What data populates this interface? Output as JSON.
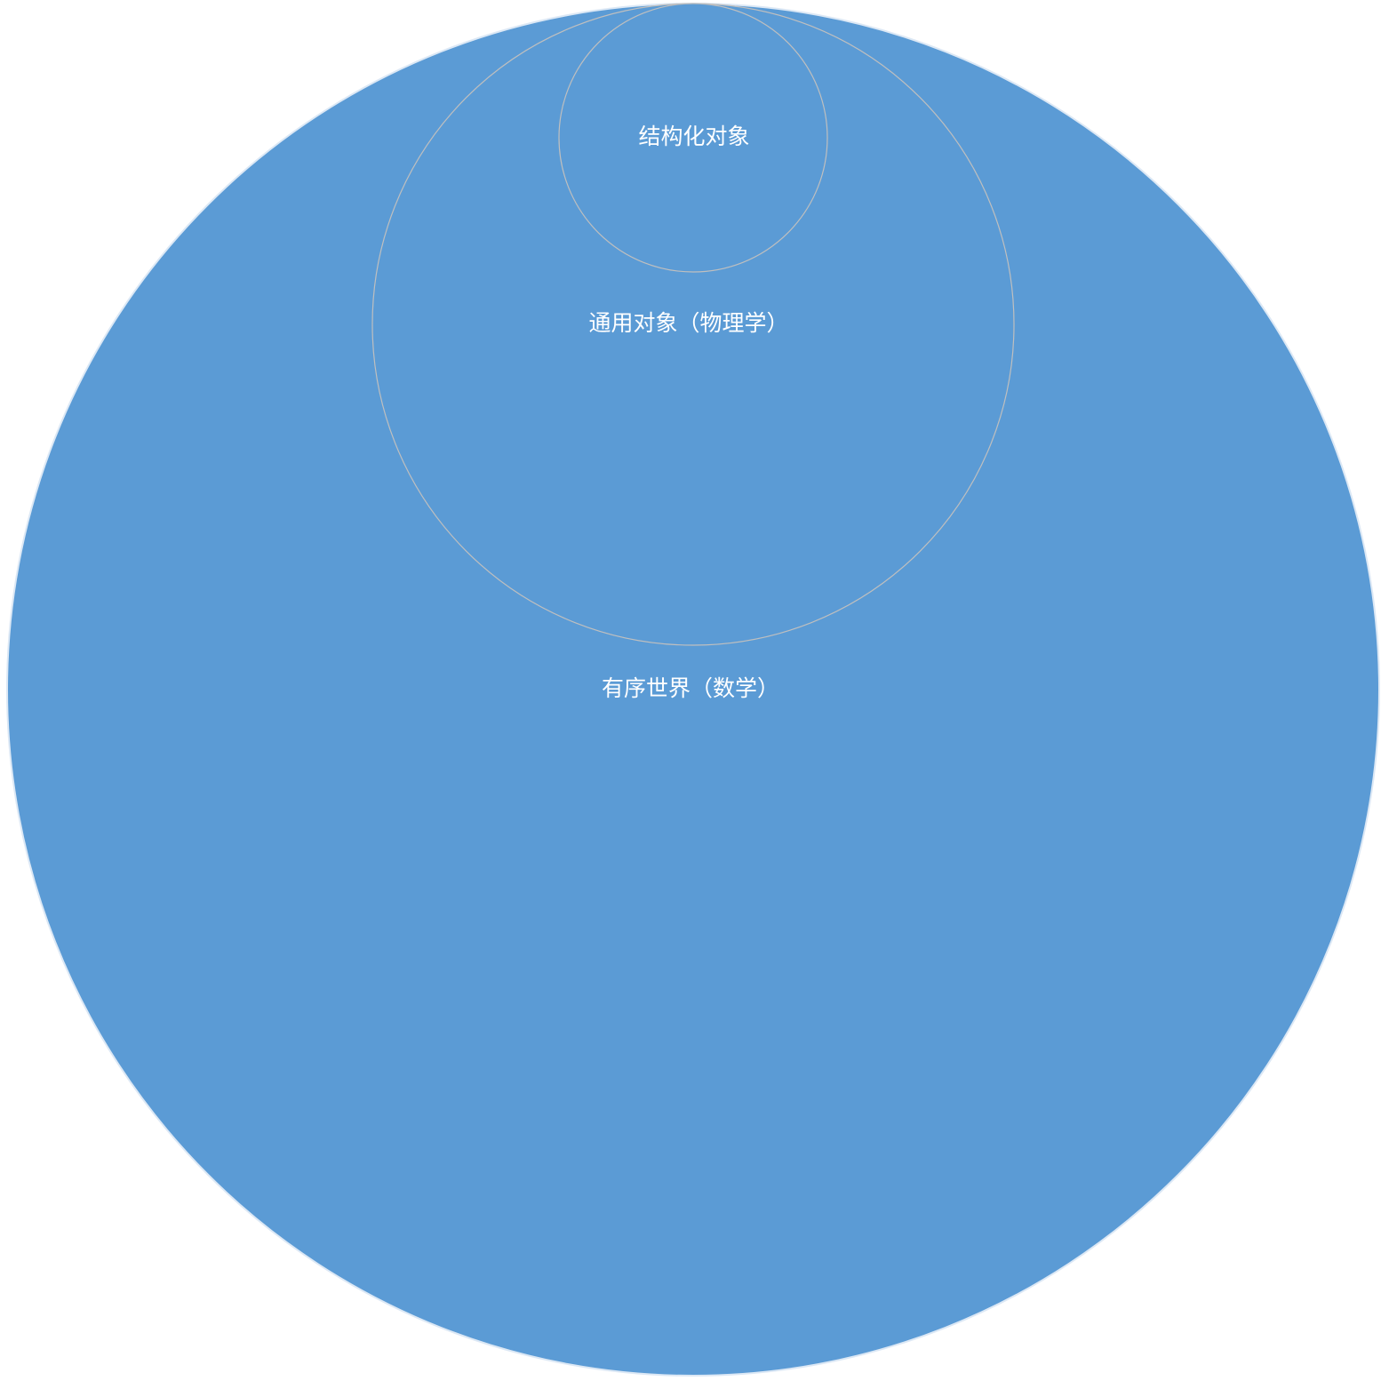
{
  "diagram": {
    "type": "nested-circles",
    "fill_color": "#5b9bd5",
    "outline_color": "#bfbfbf",
    "label_color": "#ffffff",
    "levels": [
      {
        "label": "有序世界（数学）"
      },
      {
        "label": "通用对象（物理学）"
      },
      {
        "label": "结构化对象"
      }
    ]
  }
}
